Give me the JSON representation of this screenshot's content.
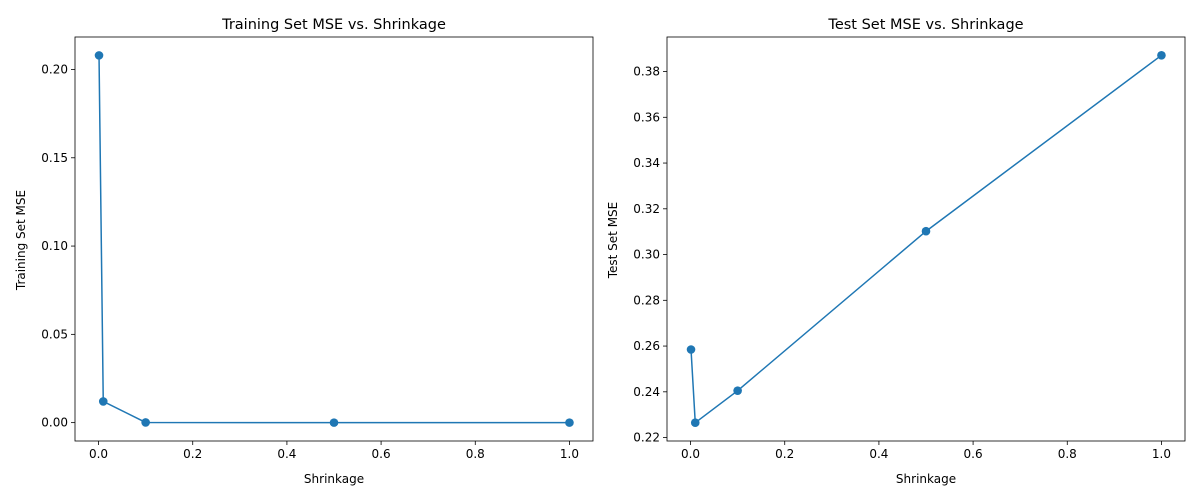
{
  "chart_data": [
    {
      "type": "line",
      "title": "Training Set MSE vs. Shrinkage",
      "xlabel": "Shrinkage",
      "ylabel": "Training Set MSE",
      "x": [
        0.001,
        0.01,
        0.1,
        0.5,
        1.0
      ],
      "y": [
        0.208,
        0.012,
        0.0001,
        0.0,
        0.0
      ],
      "xlim": [
        -0.05,
        1.05
      ],
      "ylim": [
        -0.0104,
        0.2184
      ],
      "xticks": [
        0.0,
        0.2,
        0.4,
        0.6,
        0.8,
        1.0
      ],
      "xtick_labels": [
        "0.0",
        "0.2",
        "0.4",
        "0.6",
        "0.8",
        "1.0"
      ],
      "yticks": [
        0.0,
        0.05,
        0.1,
        0.15,
        0.2
      ],
      "ytick_labels": [
        "0.00",
        "0.05",
        "0.10",
        "0.15",
        "0.20"
      ],
      "marker": "circle",
      "color": "#1f77b4",
      "grid": false
    },
    {
      "type": "line",
      "title": "Test Set MSE vs. Shrinkage",
      "xlabel": "Shrinkage",
      "ylabel": "Test Set MSE",
      "x": [
        0.001,
        0.01,
        0.1,
        0.5,
        1.0
      ],
      "y": [
        0.2585,
        0.2265,
        0.2405,
        0.3102,
        0.3871
      ],
      "xlim": [
        -0.05,
        1.05
      ],
      "ylim": [
        0.2185,
        0.3951
      ],
      "xticks": [
        0.0,
        0.2,
        0.4,
        0.6,
        0.8,
        1.0
      ],
      "xtick_labels": [
        "0.0",
        "0.2",
        "0.4",
        "0.6",
        "0.8",
        "1.0"
      ],
      "yticks": [
        0.22,
        0.24,
        0.26,
        0.28,
        0.3,
        0.32,
        0.34,
        0.36,
        0.38
      ],
      "ytick_labels": [
        "0.22",
        "0.24",
        "0.26",
        "0.28",
        "0.30",
        "0.32",
        "0.34",
        "0.36",
        "0.38"
      ],
      "marker": "circle",
      "color": "#1f77b4",
      "grid": false
    }
  ]
}
